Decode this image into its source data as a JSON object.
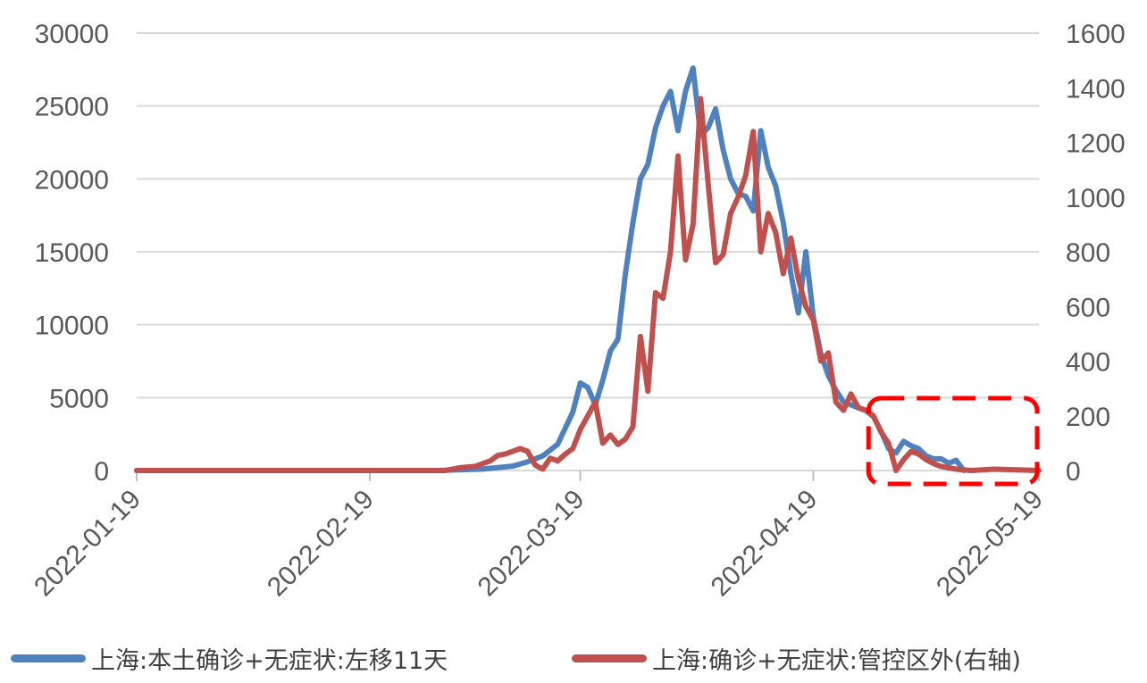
{
  "chart_data": {
    "type": "line",
    "title": "",
    "xlabel": "",
    "ylabel": "",
    "x_ticks": [
      "2022-01-19",
      "2022-02-19",
      "2022-03-19",
      "2022-04-19",
      "2022-05-19"
    ],
    "x_range": [
      "2022-01-19",
      "2022-05-19"
    ],
    "ylim_left": [
      0,
      30000
    ],
    "yticks_left": [
      "0",
      "5000",
      "10000",
      "15000",
      "20000",
      "25000",
      "30000"
    ],
    "ylim_right": [
      0,
      1600
    ],
    "yticks_right": [
      "0",
      "200",
      "400",
      "600",
      "800",
      "1000",
      "1200",
      "1400",
      "1600"
    ],
    "grid": "horizontal",
    "legend_position": "bottom",
    "highlight_box": {
      "from": "2022-04-28",
      "to": "2022-05-19",
      "style": "red dashed rounded rectangle"
    },
    "series": [
      {
        "name": "上海:本土确诊+无症状:左移11天",
        "axis": "left",
        "color": "#4E81BD",
        "points": [
          [
            "2022-01-19",
            0
          ],
          [
            "2022-02-28",
            0
          ],
          [
            "2022-03-06",
            100
          ],
          [
            "2022-03-10",
            300
          ],
          [
            "2022-03-12",
            600
          ],
          [
            "2022-03-14",
            1000
          ],
          [
            "2022-03-16",
            1800
          ],
          [
            "2022-03-18",
            4000
          ],
          [
            "2022-03-19",
            6000
          ],
          [
            "2022-03-20",
            5700
          ],
          [
            "2022-03-21",
            4500
          ],
          [
            "2022-03-22",
            6200
          ],
          [
            "2022-03-23",
            8200
          ],
          [
            "2022-03-24",
            9000
          ],
          [
            "2022-03-25",
            13500
          ],
          [
            "2022-03-26",
            17000
          ],
          [
            "2022-03-27",
            20000
          ],
          [
            "2022-03-28",
            21000
          ],
          [
            "2022-03-29",
            23500
          ],
          [
            "2022-03-30",
            25000
          ],
          [
            "2022-03-31",
            26000
          ],
          [
            "2022-04-01",
            23300
          ],
          [
            "2022-04-02",
            26000
          ],
          [
            "2022-04-03",
            27600
          ],
          [
            "2022-04-04",
            23000
          ],
          [
            "2022-04-05",
            23500
          ],
          [
            "2022-04-06",
            24800
          ],
          [
            "2022-04-07",
            22000
          ],
          [
            "2022-04-08",
            20000
          ],
          [
            "2022-04-09",
            19000
          ],
          [
            "2022-04-10",
            18800
          ],
          [
            "2022-04-11",
            17800
          ],
          [
            "2022-04-12",
            23300
          ],
          [
            "2022-04-13",
            20800
          ],
          [
            "2022-04-14",
            19500
          ],
          [
            "2022-04-15",
            17000
          ],
          [
            "2022-04-16",
            13500
          ],
          [
            "2022-04-17",
            10800
          ],
          [
            "2022-04-18",
            15000
          ],
          [
            "2022-04-19",
            10500
          ],
          [
            "2022-04-20",
            8000
          ],
          [
            "2022-04-21",
            6500
          ],
          [
            "2022-04-22",
            5500
          ],
          [
            "2022-04-23",
            4700
          ],
          [
            "2022-04-24",
            4500
          ],
          [
            "2022-04-25",
            4300
          ],
          [
            "2022-04-26",
            4100
          ],
          [
            "2022-04-27",
            3700
          ],
          [
            "2022-04-28",
            2700
          ],
          [
            "2022-04-29",
            1500
          ],
          [
            "2022-04-30",
            1200
          ],
          [
            "2022-05-01",
            2000
          ],
          [
            "2022-05-02",
            1700
          ],
          [
            "2022-05-03",
            1500
          ],
          [
            "2022-05-04",
            1000
          ],
          [
            "2022-05-05",
            800
          ],
          [
            "2022-05-06",
            800
          ],
          [
            "2022-05-07",
            500
          ],
          [
            "2022-05-08",
            700
          ],
          [
            "2022-05-09",
            0
          ]
        ]
      },
      {
        "name": "上海:确诊+无症状:管控区外(右轴)",
        "axis": "right",
        "color": "#C0504D",
        "points": [
          [
            "2022-01-19",
            0
          ],
          [
            "2022-03-01",
            0
          ],
          [
            "2022-03-03",
            10
          ],
          [
            "2022-03-05",
            15
          ],
          [
            "2022-03-06",
            25
          ],
          [
            "2022-03-07",
            35
          ],
          [
            "2022-03-08",
            55
          ],
          [
            "2022-03-09",
            60
          ],
          [
            "2022-03-10",
            70
          ],
          [
            "2022-03-11",
            80
          ],
          [
            "2022-03-12",
            70
          ],
          [
            "2022-03-13",
            20
          ],
          [
            "2022-03-14",
            5
          ],
          [
            "2022-03-15",
            45
          ],
          [
            "2022-03-16",
            35
          ],
          [
            "2022-03-17",
            60
          ],
          [
            "2022-03-18",
            80
          ],
          [
            "2022-03-19",
            150
          ],
          [
            "2022-03-20",
            200
          ],
          [
            "2022-03-21",
            250
          ],
          [
            "2022-03-22",
            100
          ],
          [
            "2022-03-23",
            130
          ],
          [
            "2022-03-24",
            95
          ],
          [
            "2022-03-25",
            115
          ],
          [
            "2022-03-26",
            160
          ],
          [
            "2022-03-27",
            490
          ],
          [
            "2022-03-28",
            290
          ],
          [
            "2022-03-29",
            650
          ],
          [
            "2022-03-30",
            630
          ],
          [
            "2022-03-31",
            800
          ],
          [
            "2022-04-01",
            1150
          ],
          [
            "2022-04-02",
            770
          ],
          [
            "2022-04-03",
            900
          ],
          [
            "2022-04-04",
            1360
          ],
          [
            "2022-04-05",
            1050
          ],
          [
            "2022-04-06",
            760
          ],
          [
            "2022-04-07",
            790
          ],
          [
            "2022-04-08",
            940
          ],
          [
            "2022-04-09",
            1000
          ],
          [
            "2022-04-10",
            1080
          ],
          [
            "2022-04-11",
            1240
          ],
          [
            "2022-04-12",
            800
          ],
          [
            "2022-04-13",
            940
          ],
          [
            "2022-04-14",
            870
          ],
          [
            "2022-04-15",
            720
          ],
          [
            "2022-04-16",
            850
          ],
          [
            "2022-04-17",
            700
          ],
          [
            "2022-04-18",
            600
          ],
          [
            "2022-04-19",
            550
          ],
          [
            "2022-04-20",
            400
          ],
          [
            "2022-04-21",
            430
          ],
          [
            "2022-04-22",
            250
          ],
          [
            "2022-04-23",
            220
          ],
          [
            "2022-04-24",
            280
          ],
          [
            "2022-04-25",
            230
          ],
          [
            "2022-04-26",
            220
          ],
          [
            "2022-04-27",
            200
          ],
          [
            "2022-04-28",
            140
          ],
          [
            "2022-04-29",
            100
          ],
          [
            "2022-04-30",
            0
          ],
          [
            "2022-05-01",
            40
          ],
          [
            "2022-05-02",
            70
          ],
          [
            "2022-05-03",
            60
          ],
          [
            "2022-05-04",
            40
          ],
          [
            "2022-05-05",
            25
          ],
          [
            "2022-05-06",
            15
          ],
          [
            "2022-05-08",
            5
          ],
          [
            "2022-05-10",
            0
          ],
          [
            "2022-05-13",
            5
          ],
          [
            "2022-05-19",
            0
          ]
        ]
      }
    ]
  }
}
